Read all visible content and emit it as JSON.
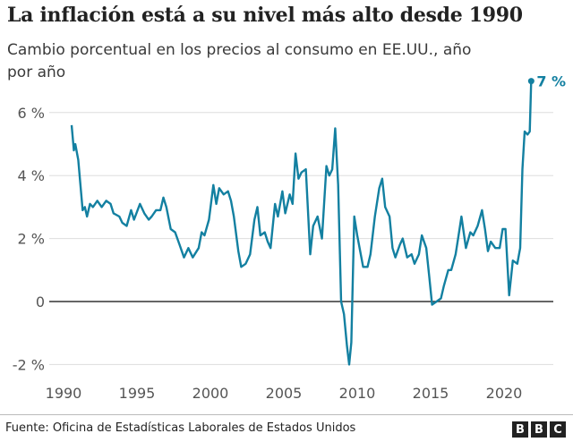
{
  "chart_data": {
    "type": "line",
    "title": "La inflación está a su nivel más alto desde 1990",
    "subtitle": "Cambio porcentual en los precios al consumo en EE.UU., año por año",
    "xlabel": "",
    "ylabel": "",
    "xlim": [
      1989.1,
      2023.3
    ],
    "ylim": [
      -2,
      7
    ],
    "yticks": [
      {
        "v": 6,
        "label": "6 %"
      },
      {
        "v": 4,
        "label": "4 %"
      },
      {
        "v": 2,
        "label": "2 %"
      },
      {
        "v": 0,
        "label": "0"
      },
      {
        "v": -2,
        "label": "-2 %"
      }
    ],
    "xticks": [
      {
        "v": 1990,
        "label": "1990"
      },
      {
        "v": 1995,
        "label": "1995"
      },
      {
        "v": 2000,
        "label": "2000"
      },
      {
        "v": 2005,
        "label": "2005"
      },
      {
        "v": 2010,
        "label": "2010"
      },
      {
        "v": 2015,
        "label": "2015"
      },
      {
        "v": 2020,
        "label": "2020"
      }
    ],
    "grid": true,
    "line_color": "#1380A1",
    "end_label": "7 %",
    "x": [
      1990.55,
      1990.7,
      1990.8,
      1991.0,
      1991.3,
      1991.45,
      1991.6,
      1991.8,
      1992.0,
      1992.3,
      1992.6,
      1992.9,
      1993.2,
      1993.4,
      1993.8,
      1994.0,
      1994.3,
      1994.6,
      1994.8,
      1995.2,
      1995.5,
      1995.8,
      1996.0,
      1996.3,
      1996.6,
      1996.8,
      1997.0,
      1997.3,
      1997.6,
      1997.9,
      1998.2,
      1998.5,
      1998.8,
      1999.2,
      1999.4,
      1999.6,
      1999.9,
      2000.2,
      2000.4,
      2000.6,
      2000.9,
      2001.2,
      2001.4,
      2001.6,
      2001.9,
      2002.1,
      2002.4,
      2002.7,
      2003.0,
      2003.2,
      2003.4,
      2003.7,
      2003.9,
      2004.1,
      2004.4,
      2004.6,
      2004.9,
      2005.1,
      2005.4,
      2005.6,
      2005.8,
      2006.0,
      2006.2,
      2006.5,
      2006.8,
      2007.0,
      2007.3,
      2007.6,
      2007.9,
      2008.1,
      2008.3,
      2008.5,
      2008.7,
      2008.9,
      2009.1,
      2009.3,
      2009.45,
      2009.6,
      2009.8,
      2010.0,
      2010.4,
      2010.7,
      2010.9,
      2011.2,
      2011.5,
      2011.7,
      2011.9,
      2012.2,
      2012.4,
      2012.6,
      2012.9,
      2013.1,
      2013.4,
      2013.7,
      2013.9,
      2014.2,
      2014.4,
      2014.7,
      2014.9,
      2015.1,
      2015.4,
      2015.7,
      2015.9,
      2016.2,
      2016.4,
      2016.7,
      2016.9,
      2017.1,
      2017.4,
      2017.7,
      2017.9,
      2018.2,
      2018.5,
      2018.7,
      2018.9,
      2019.1,
      2019.4,
      2019.7,
      2019.9,
      2020.1,
      2020.35,
      2020.6,
      2020.9,
      2021.1,
      2021.25,
      2021.4,
      2021.6,
      2021.75,
      2021.85
    ],
    "y": [
      5.6,
      4.8,
      5.0,
      4.5,
      2.9,
      3.0,
      2.7,
      3.1,
      3.0,
      3.2,
      3.0,
      3.2,
      3.1,
      2.8,
      2.7,
      2.5,
      2.4,
      2.9,
      2.6,
      3.1,
      2.8,
      2.6,
      2.7,
      2.9,
      2.9,
      3.3,
      3.0,
      2.3,
      2.2,
      1.8,
      1.4,
      1.7,
      1.4,
      1.7,
      2.2,
      2.1,
      2.6,
      3.7,
      3.1,
      3.6,
      3.4,
      3.5,
      3.2,
      2.7,
      1.6,
      1.1,
      1.2,
      1.5,
      2.6,
      3.0,
      2.1,
      2.2,
      1.9,
      1.7,
      3.1,
      2.7,
      3.5,
      2.8,
      3.4,
      3.1,
      4.7,
      3.9,
      4.1,
      4.2,
      1.5,
      2.4,
      2.7,
      2.0,
      4.3,
      4.0,
      4.2,
      5.5,
      3.7,
      0.0,
      -0.4,
      -1.4,
      -2.0,
      -1.3,
      2.7,
      2.1,
      1.1,
      1.1,
      1.5,
      2.7,
      3.6,
      3.9,
      3.0,
      2.7,
      1.7,
      1.4,
      1.8,
      2.0,
      1.4,
      1.5,
      1.2,
      1.5,
      2.1,
      1.7,
      0.8,
      -0.1,
      0.0,
      0.1,
      0.5,
      1.0,
      1.0,
      1.5,
      2.1,
      2.7,
      1.7,
      2.2,
      2.1,
      2.4,
      2.9,
      2.3,
      1.6,
      1.9,
      1.7,
      1.7,
      2.3,
      2.3,
      0.2,
      1.3,
      1.2,
      1.7,
      4.2,
      5.4,
      5.3,
      5.4,
      7.0
    ]
  },
  "footer": {
    "source": "Fuente: Oficina de Estadísticas Laborales de Estados Unidos",
    "logo": "BBC"
  }
}
